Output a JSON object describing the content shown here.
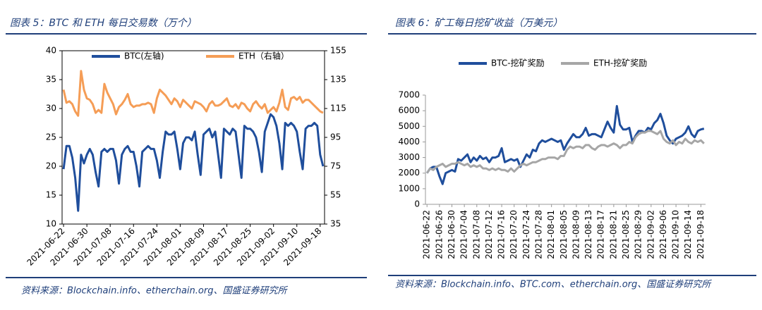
{
  "chart_data": [
    {
      "type": "line",
      "title": "图表 5：BTC 和 ETH 每日交易数（万个）",
      "source": "资料来源：Blockchain.info、etherchain.org、国盛证券研究所",
      "legend": "top",
      "categories": [
        "2021-06-22",
        null,
        null,
        null,
        null,
        null,
        null,
        null,
        "2021-06-30",
        null,
        null,
        null,
        null,
        null,
        null,
        null,
        "2021-07-08",
        null,
        null,
        null,
        null,
        null,
        null,
        null,
        "2021-07-16",
        null,
        null,
        null,
        null,
        null,
        null,
        null,
        "2021-07-24",
        null,
        null,
        null,
        null,
        null,
        null,
        null,
        "2021-08-01",
        null,
        null,
        null,
        null,
        null,
        null,
        null,
        "2021-08-09",
        null,
        null,
        null,
        null,
        null,
        null,
        null,
        "2021-08-17",
        null,
        null,
        null,
        null,
        null,
        null,
        null,
        "2021-08-25",
        null,
        null,
        null,
        null,
        null,
        null,
        null,
        "2021-09-02",
        null,
        null,
        null,
        null,
        null,
        null,
        null,
        "2021-09-10",
        null,
        null,
        null,
        null,
        null,
        null,
        null,
        "2021-09-18",
        null
      ],
      "ylim": [
        10,
        40
      ],
      "yticks": [
        10,
        15,
        20,
        25,
        30,
        35,
        40
      ],
      "y2lim": [
        35,
        155
      ],
      "y2ticks": [
        35,
        55,
        75,
        95,
        115,
        135,
        155
      ],
      "series": [
        {
          "name": "BTC(左轴)",
          "color": "#1f4e9c",
          "values": [
            19.5,
            23.5,
            23.5,
            21.5,
            18,
            12.3,
            22,
            20.5,
            22,
            23,
            22,
            19,
            16.5,
            22.5,
            23,
            22.5,
            23,
            23,
            21,
            17,
            22,
            23,
            23.5,
            22.5,
            22.5,
            20,
            16.5,
            22.5,
            23,
            23.5,
            23,
            23,
            21,
            18,
            22.5,
            26,
            25.5,
            25.5,
            26,
            23,
            19.5,
            24,
            25,
            25,
            24.5,
            26,
            22,
            18.5,
            25.5,
            26,
            26.5,
            25,
            26,
            22,
            18,
            26.5,
            26,
            25.5,
            26.5,
            26,
            22,
            18,
            27,
            26.5,
            26.5,
            26,
            25,
            22.5,
            19,
            26,
            27.5,
            29,
            28.5,
            27,
            24,
            19.5,
            27.5,
            27,
            27.5,
            27,
            26,
            22.5,
            19.5,
            26.5,
            27,
            27,
            27.5,
            27,
            22,
            20
          ]
        },
        {
          "name": "ETH（右轴）",
          "color": "#f59d56",
          "axis": "y2",
          "values": [
            128,
            119,
            120,
            118,
            113,
            110,
            141,
            128,
            122,
            121,
            118,
            112,
            114,
            112,
            132,
            126,
            122,
            118,
            111,
            116,
            118,
            121,
            125,
            118,
            116,
            117,
            117,
            118,
            118,
            119,
            118,
            112,
            122,
            128,
            126,
            124,
            121,
            118,
            122,
            120,
            116,
            121,
            119,
            117,
            115,
            120,
            119,
            118,
            116,
            113,
            118,
            120,
            117,
            117,
            118,
            120,
            122,
            117,
            116,
            118,
            115,
            119,
            118,
            115,
            113,
            118,
            120,
            117,
            115,
            118,
            112,
            114,
            116,
            113,
            119,
            128,
            116,
            114,
            122,
            123,
            121,
            123,
            119,
            121,
            121,
            119,
            117,
            115,
            113,
            112
          ]
        }
      ]
    },
    {
      "type": "line",
      "title": "图表 6：矿工每日挖矿收益（万美元）",
      "source": "资料来源：Blockchain.info、BTC.com、etherchain.org、国盛证券研究所",
      "legend": "top",
      "categories": [
        "2021-06-22",
        null,
        null,
        null,
        "2021-06-26",
        null,
        null,
        null,
        "2021-06-30",
        null,
        null,
        null,
        "2021-07-04",
        null,
        null,
        null,
        "2021-07-08",
        null,
        null,
        null,
        "2021-07-12",
        null,
        null,
        null,
        "2021-07-16",
        null,
        null,
        null,
        "2021-07-20",
        null,
        null,
        null,
        "2021-07-24",
        null,
        null,
        null,
        "2021-07-28",
        null,
        null,
        null,
        "2021-08-01",
        null,
        null,
        null,
        "2021-08-05",
        null,
        null,
        null,
        "2021-08-09",
        null,
        null,
        null,
        "2021-08-13",
        null,
        null,
        null,
        "2021-08-17",
        null,
        null,
        null,
        "2021-08-21",
        null,
        null,
        null,
        "2021-08-25",
        null,
        null,
        null,
        "2021-08-29",
        null,
        null,
        null,
        "2021-09-02",
        null,
        null,
        null,
        "2021-09-06",
        null,
        null,
        null,
        "2021-09-10",
        null,
        null,
        null,
        "2021-09-14",
        null,
        null,
        null,
        "2021-09-18",
        null
      ],
      "ylim": [
        0,
        7000
      ],
      "yticks": [
        0,
        1000,
        2000,
        3000,
        4000,
        5000,
        6000,
        7000
      ],
      "series": [
        {
          "name": "BTC-挖矿奖励",
          "color": "#1f4e9c",
          "values": [
            2000,
            2300,
            2400,
            2400,
            1800,
            1300,
            2000,
            2100,
            2200,
            2100,
            2900,
            2800,
            3000,
            3200,
            2700,
            3000,
            2800,
            3100,
            2900,
            3000,
            2700,
            3000,
            3000,
            3100,
            3600,
            2700,
            2800,
            2900,
            2800,
            2900,
            2400,
            2800,
            3200,
            3000,
            3500,
            3400,
            3900,
            4100,
            4000,
            4100,
            4200,
            4100,
            4000,
            4100,
            3500,
            3900,
            4200,
            4500,
            4300,
            4300,
            4500,
            4900,
            4400,
            4500,
            4500,
            4400,
            4300,
            4800,
            5300,
            4900,
            4600,
            6300,
            5100,
            4800,
            4800,
            4900,
            4000,
            4400,
            4700,
            4700,
            4600,
            4900,
            4800,
            5200,
            5400,
            5800,
            5200,
            4400,
            4100,
            3900,
            4200,
            4300,
            4400,
            4600,
            5000,
            4500,
            4300,
            4700,
            4800,
            4850
          ]
        },
        {
          "name": "ETH-挖矿奖励",
          "color": "#a6a6a6",
          "values": [
            2000,
            2300,
            2200,
            2400,
            2500,
            2600,
            2400,
            2500,
            2600,
            2600,
            2700,
            2600,
            2500,
            2600,
            2400,
            2500,
            2400,
            2500,
            2300,
            2300,
            2200,
            2300,
            2200,
            2300,
            2200,
            2200,
            2100,
            2300,
            2100,
            2300,
            2500,
            2600,
            2500,
            2600,
            2700,
            2700,
            2800,
            2900,
            2900,
            3000,
            3000,
            3000,
            2900,
            3100,
            3100,
            3500,
            3700,
            3600,
            3700,
            3700,
            3600,
            3800,
            3800,
            3600,
            3500,
            3700,
            3800,
            3800,
            3700,
            3800,
            3900,
            3800,
            3600,
            3800,
            3800,
            4000,
            3900,
            4300,
            4500,
            4600,
            4600,
            4700,
            4700,
            4600,
            4500,
            4700,
            4200,
            4000,
            3900,
            4100,
            3800,
            4000,
            3900,
            4200,
            4000,
            3900,
            4100,
            4000,
            4100,
            3900
          ]
        }
      ]
    }
  ]
}
